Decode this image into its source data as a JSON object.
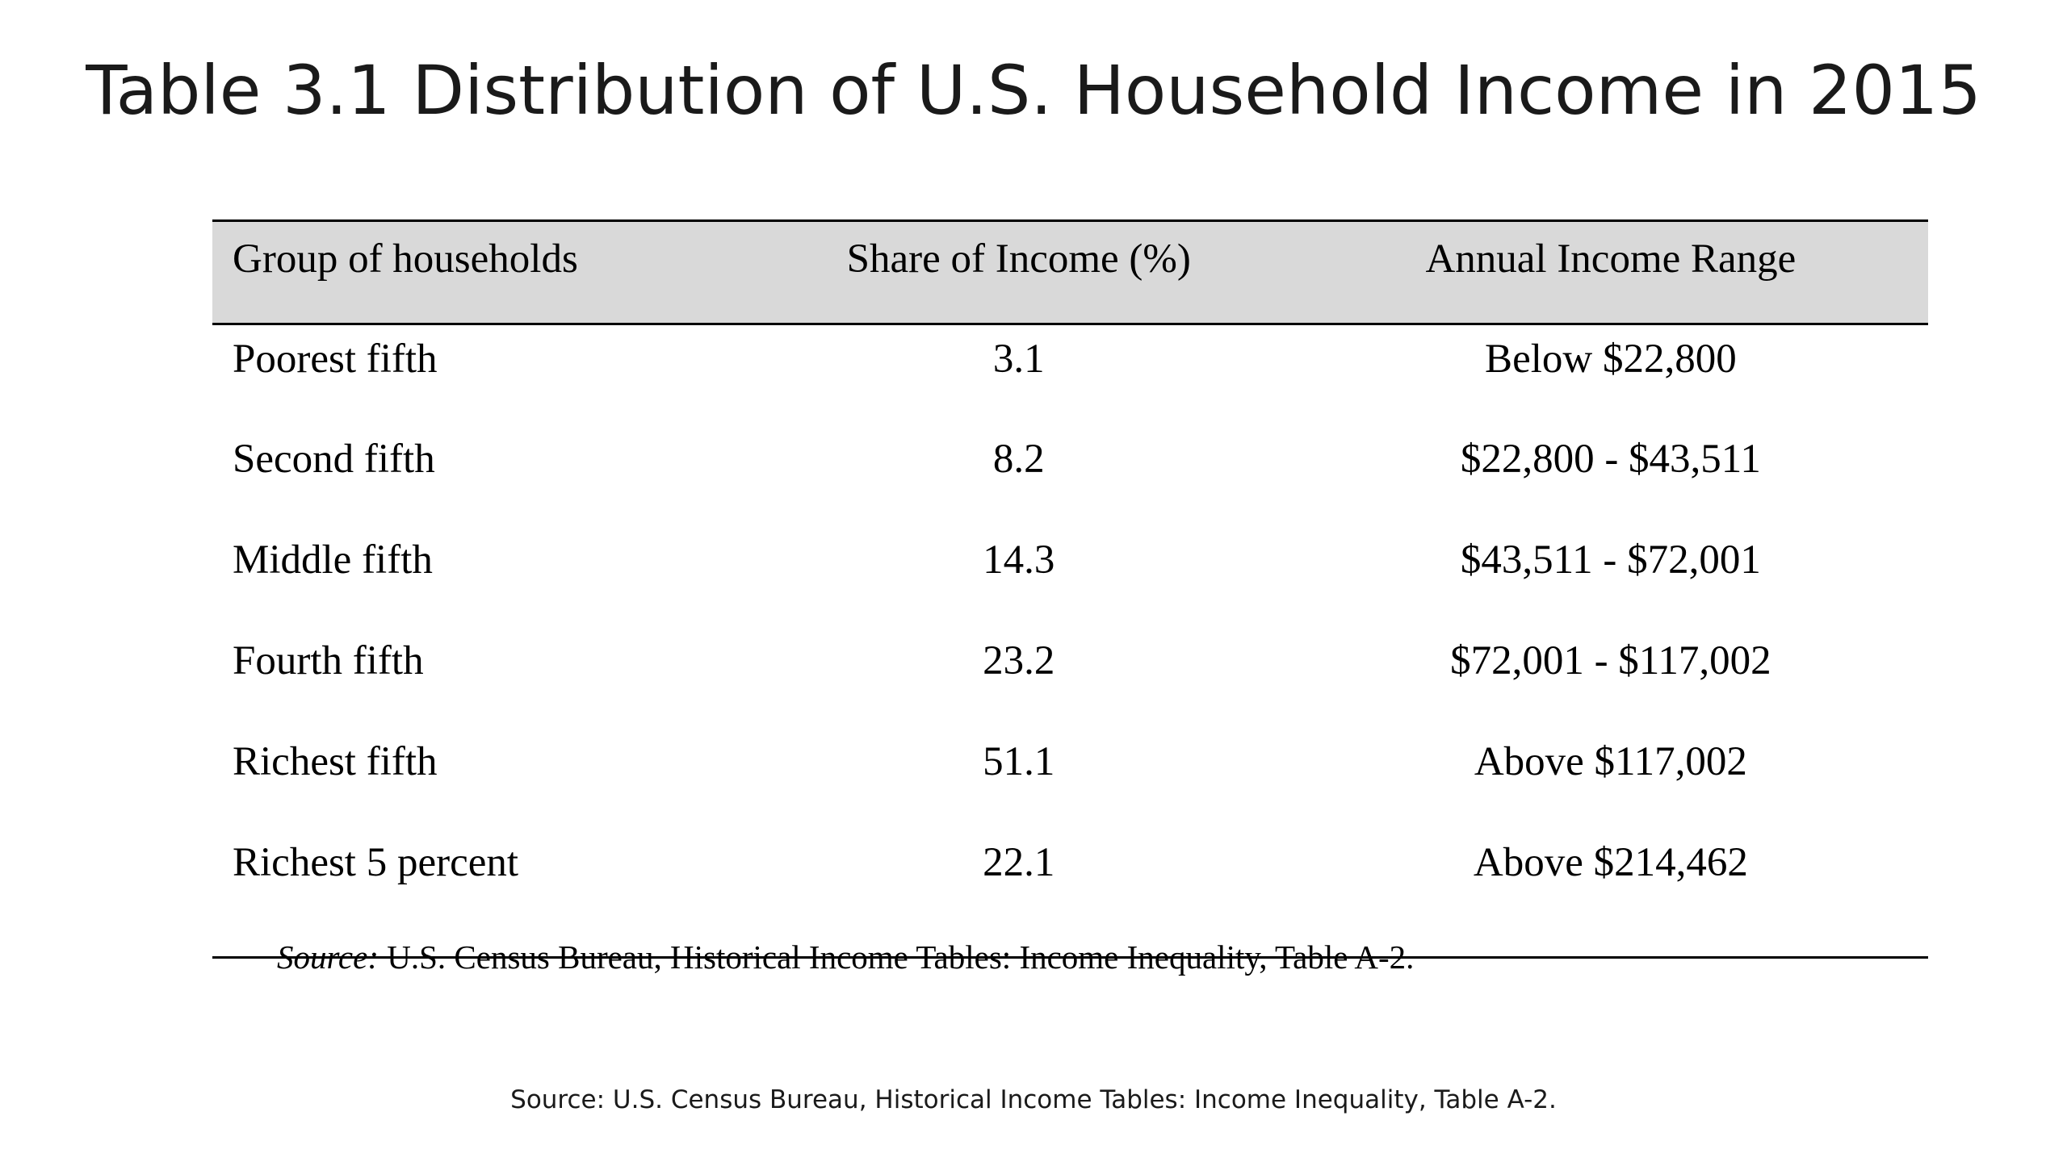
{
  "slide": {
    "title": "Table 3.1 Distribution of U.S. Household Income in 2015",
    "footer_source": "Source: U.S. Census Bureau, Historical Income Tables: Income Inequality, Table A-2."
  },
  "table": {
    "headers": {
      "group": "Group of households",
      "share": "Share of Income (%)",
      "range": "Annual Income Range"
    },
    "rows": [
      {
        "group": "Poorest fifth",
        "share": "3.1",
        "range": "Below $22,800"
      },
      {
        "group": "Second fifth",
        "share": "8.2",
        "range": "$22,800 - $43,511"
      },
      {
        "group": "Middle fifth",
        "share": "14.3",
        "range": "$43,511 - $72,001"
      },
      {
        "group": "Fourth fifth",
        "share": "23.2",
        "range": "$72,001 - $117,002"
      },
      {
        "group": "Richest fifth",
        "share": "51.1",
        "range": "Above $117,002"
      },
      {
        "group": "Richest 5 percent",
        "share": "22.1",
        "range": "Above $214,462"
      }
    ],
    "source_label": "Source:",
    "source_text": " U.S. Census Bureau, Historical Income Tables: Income Inequality, Table A-2."
  },
  "colors": {
    "header_background": "#d9d9d9",
    "text": "#000000",
    "background": "#ffffff"
  }
}
